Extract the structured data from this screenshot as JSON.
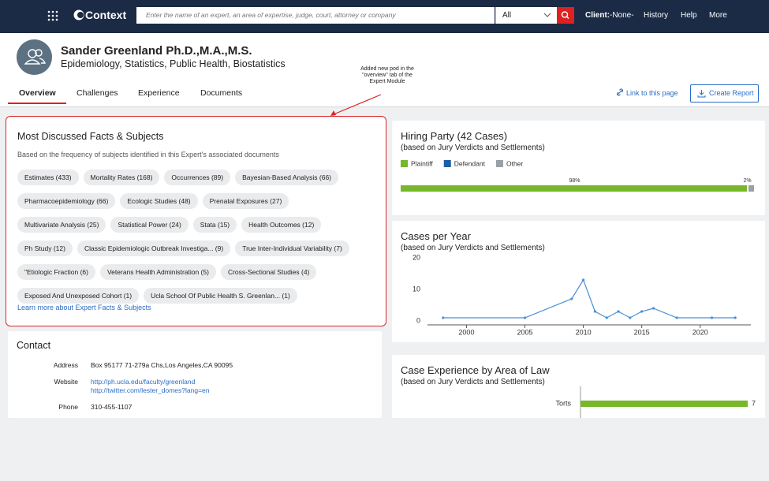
{
  "nav": {
    "brand": "Context",
    "search_placeholder": "Enter the name of an expert, an area of expertise, judge, court, attorney or company",
    "filter": "All",
    "client_label": "Client:",
    "client_value": "-None-",
    "links": [
      "History",
      "Help",
      "More"
    ]
  },
  "profile": {
    "name": "Sander Greenland Ph.D.,M.A.,M.S.",
    "fields": "Epidemiology, Statistics, Public Health, Biostatistics"
  },
  "tabs": [
    "Overview",
    "Challenges",
    "Experience",
    "Documents"
  ],
  "actions": {
    "link": "Link to this page",
    "report": "Create Report"
  },
  "annotation": "Added new pod in the \"overview\" tab of the Expert Module",
  "facts": {
    "title": "Most Discussed Facts & Subjects",
    "subtitle": "Based on the frequency of subjects identified in this Expert's associated documents",
    "tags": [
      "Estimates (433)",
      "Mortality Rates (168)",
      "Occurrences (89)",
      "Bayesian-Based Analysis (66)",
      "Pharmacoepidemiology (66)",
      "Ecologic Studies (48)",
      "Prenatal Exposures (27)",
      "Multivariate Analysis (25)",
      "Statistical Power (24)",
      "Stata (15)",
      "Health Outcomes (12)",
      "Ph Study (12)",
      "Classic Epidemiologic Outbreak Investiga... (9)",
      "True Inter-Individual Variability (7)",
      "\"Etiologic Fraction (6)",
      "Veterans Health Administration (5)",
      "Cross-Sectional Studies (4)",
      "Exposed And Unexposed Cohort (1)",
      "Ucla School Of Public Health S. Greenlan... (1)"
    ],
    "link": "Learn more about Expert Facts & Subjects"
  },
  "contact": {
    "title": "Contact",
    "rows": [
      {
        "label": "Address",
        "values": [
          "Box 95177 71-279a Chs,Los Angeles,CA 90095"
        ]
      },
      {
        "label": "Website",
        "values": [
          "http://ph.ucla.edu/faculty/greenland",
          "http://twitter.com/lester_domes?lang=en"
        ]
      },
      {
        "label": "Phone",
        "values": [
          "310-455-1107"
        ]
      }
    ]
  },
  "chart_data": [
    {
      "type": "stacked-bar",
      "title": "Hiring Party (42 Cases)",
      "subtitle": "(based on Jury Verdicts and Settlements)",
      "xlim": [
        0,
        100
      ],
      "series": [
        {
          "name": "Plaintiff",
          "color": "#76b82a",
          "values": [
            98
          ],
          "value_labels": [
            "98%"
          ]
        },
        {
          "name": "Defendant",
          "color": "#1f5fa8",
          "values": [
            0
          ]
        },
        {
          "name": "Other",
          "color": "#9aa0a6",
          "values": [
            2
          ],
          "value_labels": [
            "2%"
          ]
        }
      ]
    },
    {
      "type": "line",
      "title": "Cases per Year",
      "subtitle": "(based on Jury Verdicts and Settlements)",
      "color": "#4a8fd4",
      "x": [
        1998,
        2005,
        2009,
        2010,
        2011,
        2012,
        2013,
        2014,
        2015,
        2016,
        2018,
        2021,
        2023
      ],
      "values": [
        1,
        1,
        7,
        13,
        3,
        1,
        3,
        1,
        3,
        4,
        1,
        1,
        1
      ],
      "xlim": [
        1997,
        2024
      ],
      "xticks": [
        2000,
        2005,
        2010,
        2015,
        2020
      ],
      "ylim": [
        0,
        20
      ],
      "yticks": [
        0,
        10,
        20
      ]
    },
    {
      "type": "hbar",
      "title": "Case Experience by Area of Law",
      "subtitle": "(based on Jury Verdicts and Settlements)",
      "color": "#76b82a",
      "categories": [
        "Torts"
      ],
      "values": [
        7
      ],
      "xlim": [
        0,
        7
      ]
    }
  ]
}
